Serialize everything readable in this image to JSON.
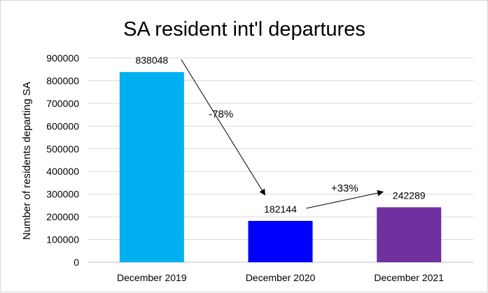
{
  "chart_data": {
    "type": "bar",
    "title": "SA resident int'l departures",
    "xlabel": "",
    "ylabel": "Number of residents departing SA",
    "categories": [
      "December 2019",
      "December 2020",
      "December 2021"
    ],
    "values": [
      838048,
      182144,
      242289
    ],
    "data_labels": [
      "838048",
      "182144",
      "242289"
    ],
    "colors": [
      "#00b0f0",
      "#0000ff",
      "#7030a0"
    ],
    "ylim": [
      0,
      900000
    ],
    "yticks": [
      0,
      100000,
      200000,
      300000,
      400000,
      500000,
      600000,
      700000,
      800000,
      900000
    ],
    "ytick_labels": [
      "0",
      "100000",
      "200000",
      "300000",
      "400000",
      "500000",
      "600000",
      "700000",
      "800000",
      "900000"
    ],
    "grid": true,
    "legend": "none",
    "annotations": [
      {
        "text": "-78%",
        "from_category": "December 2019",
        "to_category": "December 2020"
      },
      {
        "text": "+33%",
        "from_category": "December 2020",
        "to_category": "December 2021"
      }
    ]
  }
}
